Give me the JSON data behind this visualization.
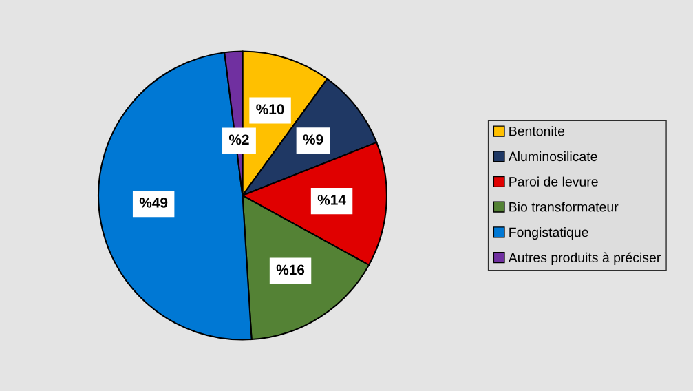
{
  "chart_data": {
    "type": "pie",
    "categories": [
      "Bentonite",
      "Aluminosilicate",
      "Paroi de levure",
      "Bio transformateur",
      "Fongistatique",
      "Autres produits à préciser"
    ],
    "values": [
      10,
      9,
      14,
      16,
      49,
      2
    ],
    "colors": [
      "#ffc000",
      "#1f3864",
      "#e00000",
      "#548235",
      "#0078d4",
      "#7030a0"
    ],
    "value_labels": [
      "%10",
      "%9",
      "%14",
      "%16",
      "%49",
      "%2"
    ],
    "legend": "right"
  }
}
